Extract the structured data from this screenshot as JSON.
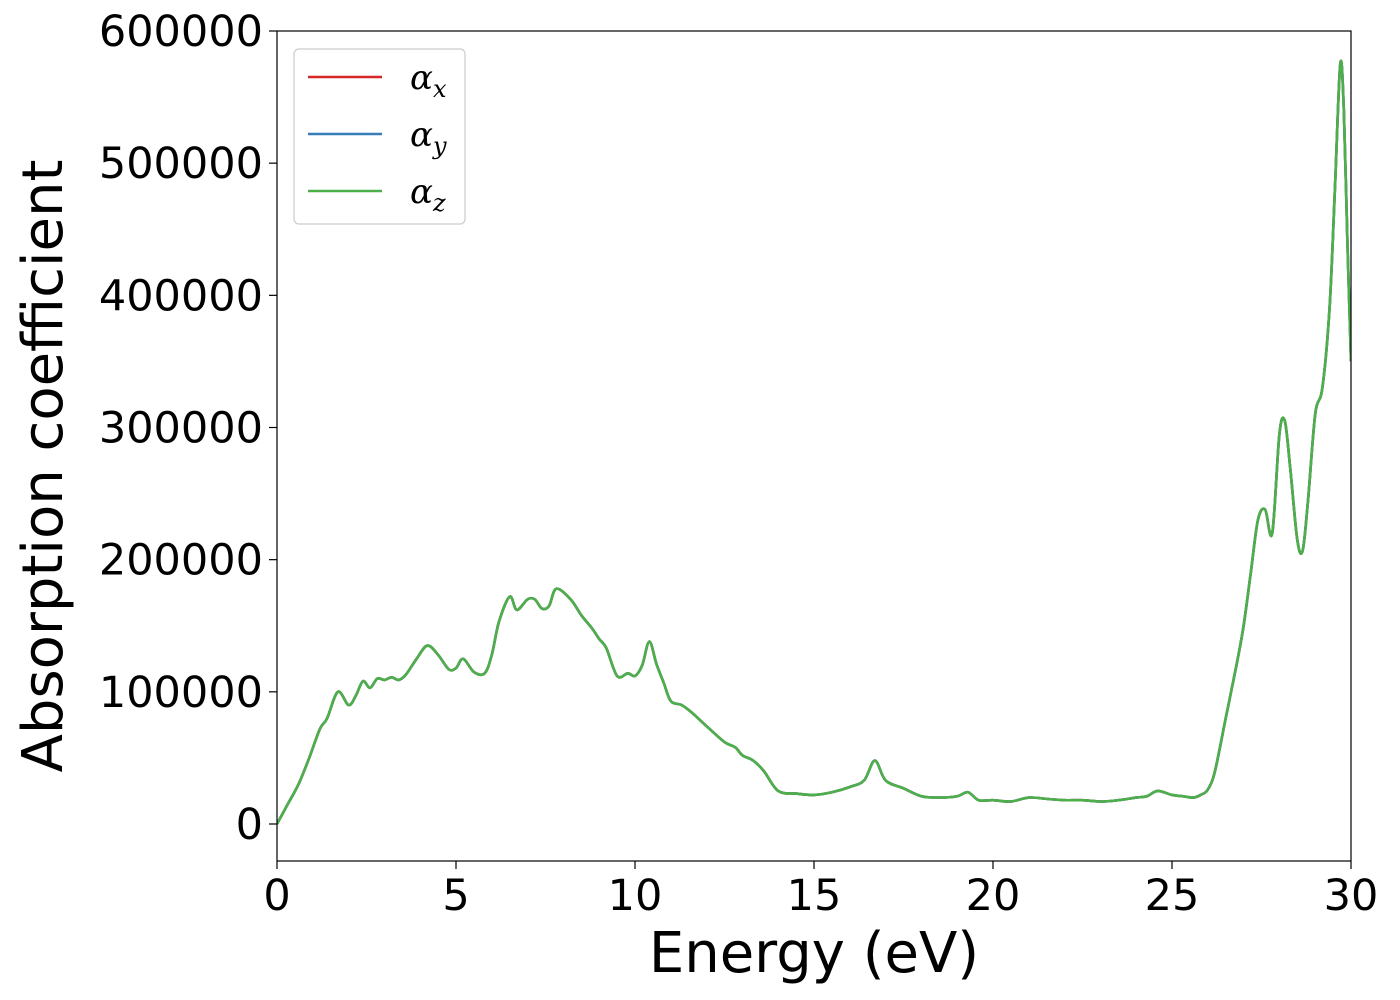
{
  "chart_data": {
    "type": "line",
    "title": "",
    "xlabel": "Energy (eV)",
    "ylabel": "Absorption coefficient",
    "xlim": [
      0,
      30
    ],
    "ylim": [
      -28000,
      600000
    ],
    "xticks": [
      0,
      5,
      10,
      15,
      20,
      25,
      30
    ],
    "yticks": [
      0,
      100000,
      200000,
      300000,
      400000,
      500000,
      600000
    ],
    "grid": false,
    "legend_position": "top-left",
    "x": [
      0,
      0.3,
      0.6,
      0.9,
      1.2,
      1.4,
      1.7,
      2.0,
      2.2,
      2.4,
      2.6,
      2.8,
      3.0,
      3.2,
      3.4,
      3.6,
      3.9,
      4.2,
      4.5,
      4.8,
      5.0,
      5.2,
      5.5,
      5.8,
      6.0,
      6.2,
      6.5,
      6.7,
      7.0,
      7.2,
      7.4,
      7.6,
      7.8,
      8.2,
      8.5,
      8.8,
      9.0,
      9.2,
      9.5,
      9.8,
      10.0,
      10.2,
      10.4,
      10.6,
      10.8,
      11.0,
      11.3,
      11.6,
      12.0,
      12.5,
      12.8,
      13.0,
      13.3,
      13.6,
      14.0,
      14.5,
      15.0,
      15.5,
      16.0,
      16.4,
      16.7,
      17.0,
      17.5,
      18.0,
      18.5,
      19.0,
      19.3,
      19.6,
      20.0,
      20.5,
      21.0,
      21.5,
      22.0,
      22.5,
      23.0,
      23.5,
      24.0,
      24.3,
      24.6,
      25.0,
      25.3,
      25.6,
      25.8,
      26.0,
      26.2,
      26.5,
      26.8,
      27.0,
      27.2,
      27.4,
      27.6,
      27.8,
      28.0,
      28.15,
      28.3,
      28.5,
      28.65,
      28.8,
      29.0,
      29.2,
      29.4,
      29.55,
      29.7,
      29.8,
      29.9,
      30.0
    ],
    "series": [
      {
        "name": "αx",
        "name_base": "α",
        "name_sub": "x",
        "color": "#d62728",
        "y": [
          0,
          15000,
          30000,
          50000,
          72000,
          80000,
          100000,
          90000,
          97000,
          108000,
          103000,
          110000,
          109000,
          111000,
          109000,
          113000,
          125000,
          135000,
          128000,
          117000,
          118000,
          125000,
          115000,
          114000,
          128000,
          153000,
          172000,
          162000,
          170000,
          170000,
          163000,
          165000,
          178000,
          170000,
          158000,
          148000,
          140000,
          133000,
          112000,
          114000,
          112000,
          120000,
          138000,
          121000,
          107000,
          93000,
          90000,
          84000,
          74000,
          62000,
          58000,
          52000,
          48000,
          40000,
          25000,
          23000,
          22000,
          24000,
          28000,
          33000,
          48000,
          33000,
          27000,
          21000,
          20000,
          21000,
          24000,
          18000,
          18000,
          17000,
          20000,
          19000,
          18000,
          18000,
          17000,
          18000,
          20000,
          21000,
          25000,
          22000,
          21000,
          20000,
          22000,
          26000,
          40000,
          80000,
          120000,
          150000,
          190000,
          230000,
          238000,
          220000,
          295000,
          305000,
          270000,
          215000,
          207000,
          245000,
          310000,
          330000,
          390000,
          480000,
          575000,
          540000,
          440000,
          350000
        ]
      },
      {
        "name": "αy",
        "name_base": "α",
        "name_sub": "y",
        "color": "#377eb8",
        "y": [
          0,
          15000,
          30000,
          50000,
          72000,
          80000,
          100000,
          90000,
          97000,
          108000,
          103000,
          110000,
          109000,
          111000,
          109000,
          113000,
          125000,
          135000,
          128000,
          117000,
          118000,
          125000,
          115000,
          114000,
          128000,
          153000,
          172000,
          162000,
          170000,
          170000,
          163000,
          165000,
          178000,
          170000,
          158000,
          148000,
          140000,
          133000,
          112000,
          114000,
          112000,
          120000,
          138000,
          121000,
          107000,
          93000,
          90000,
          84000,
          74000,
          62000,
          58000,
          52000,
          48000,
          40000,
          25000,
          23000,
          22000,
          24000,
          28000,
          33000,
          48000,
          33000,
          27000,
          21000,
          20000,
          21000,
          24000,
          18000,
          18000,
          17000,
          20000,
          19000,
          18000,
          18000,
          17000,
          18000,
          20000,
          21000,
          25000,
          22000,
          21000,
          20000,
          22000,
          26000,
          40000,
          80000,
          120000,
          150000,
          190000,
          230000,
          238000,
          220000,
          295000,
          305000,
          270000,
          215000,
          207000,
          245000,
          310000,
          330000,
          390000,
          480000,
          575000,
          540000,
          440000,
          350000
        ]
      },
      {
        "name": "αz",
        "name_base": "α",
        "name_sub": "z",
        "color": "#4daf4a",
        "y": [
          0,
          15000,
          30000,
          50000,
          72000,
          80000,
          100000,
          90000,
          97000,
          108000,
          103000,
          110000,
          109000,
          111000,
          109000,
          113000,
          125000,
          135000,
          128000,
          117000,
          118000,
          125000,
          115000,
          114000,
          128000,
          153000,
          172000,
          162000,
          170000,
          170000,
          163000,
          165000,
          178000,
          170000,
          158000,
          148000,
          140000,
          133000,
          112000,
          114000,
          112000,
          120000,
          138000,
          121000,
          107000,
          93000,
          90000,
          84000,
          74000,
          62000,
          58000,
          52000,
          48000,
          40000,
          25000,
          23000,
          22000,
          24000,
          28000,
          33000,
          48000,
          33000,
          27000,
          21000,
          20000,
          21000,
          24000,
          18000,
          18000,
          17000,
          20000,
          19000,
          18000,
          18000,
          17000,
          18000,
          20000,
          21000,
          25000,
          22000,
          21000,
          20000,
          22000,
          26000,
          40000,
          80000,
          120000,
          150000,
          190000,
          230000,
          238000,
          220000,
          295000,
          305000,
          270000,
          215000,
          207000,
          245000,
          310000,
          330000,
          390000,
          480000,
          575000,
          540000,
          440000,
          350000
        ]
      }
    ]
  }
}
